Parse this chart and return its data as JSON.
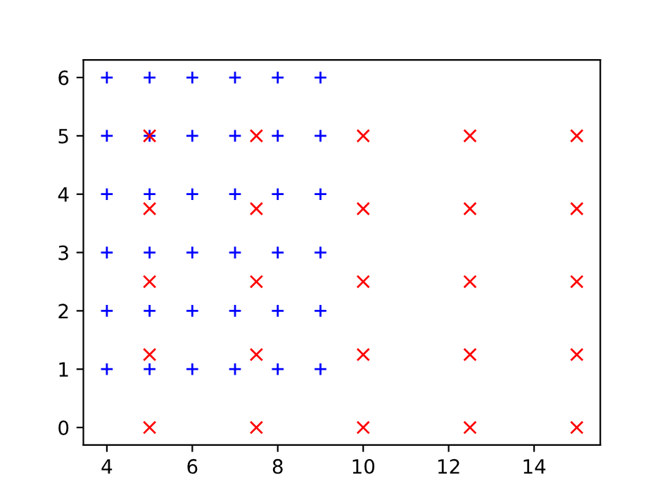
{
  "chart_data": {
    "type": "scatter",
    "series": [
      {
        "color": "#0000ff",
        "marker": "plus",
        "x": [
          4,
          5,
          6,
          7,
          8,
          9,
          4,
          5,
          6,
          7,
          8,
          9,
          4,
          5,
          6,
          7,
          8,
          9,
          4,
          5,
          6,
          7,
          8,
          9,
          4,
          5,
          6,
          7,
          8,
          9,
          4,
          5,
          6,
          7,
          8,
          9
        ],
        "values": [
          1,
          1,
          1,
          1,
          1,
          1,
          2,
          2,
          2,
          2,
          2,
          2,
          3,
          3,
          3,
          3,
          3,
          3,
          4,
          4,
          4,
          4,
          4,
          4,
          5,
          5,
          5,
          5,
          5,
          5,
          6,
          6,
          6,
          6,
          6,
          6
        ]
      },
      {
        "color": "#ff0000",
        "marker": "cross",
        "x": [
          5,
          7.5,
          10,
          12.5,
          15,
          5,
          7.5,
          10,
          12.5,
          15,
          5,
          7.5,
          10,
          12.5,
          15,
          5,
          7.5,
          10,
          12.5,
          15,
          5,
          7.5,
          10,
          12.5,
          15
        ],
        "values": [
          0,
          0,
          0,
          0,
          0,
          1.25,
          1.25,
          1.25,
          1.25,
          1.25,
          2.5,
          2.5,
          2.5,
          2.5,
          2.5,
          3.75,
          3.75,
          3.75,
          3.75,
          3.75,
          5,
          5,
          5,
          5,
          5
        ]
      }
    ],
    "xlim": [
      3.45,
      15.55
    ],
    "ylim": [
      -0.3,
      6.3
    ],
    "xticks": [
      4,
      6,
      8,
      10,
      12,
      14
    ],
    "yticks": [
      0,
      1,
      2,
      3,
      4,
      5,
      6
    ]
  }
}
